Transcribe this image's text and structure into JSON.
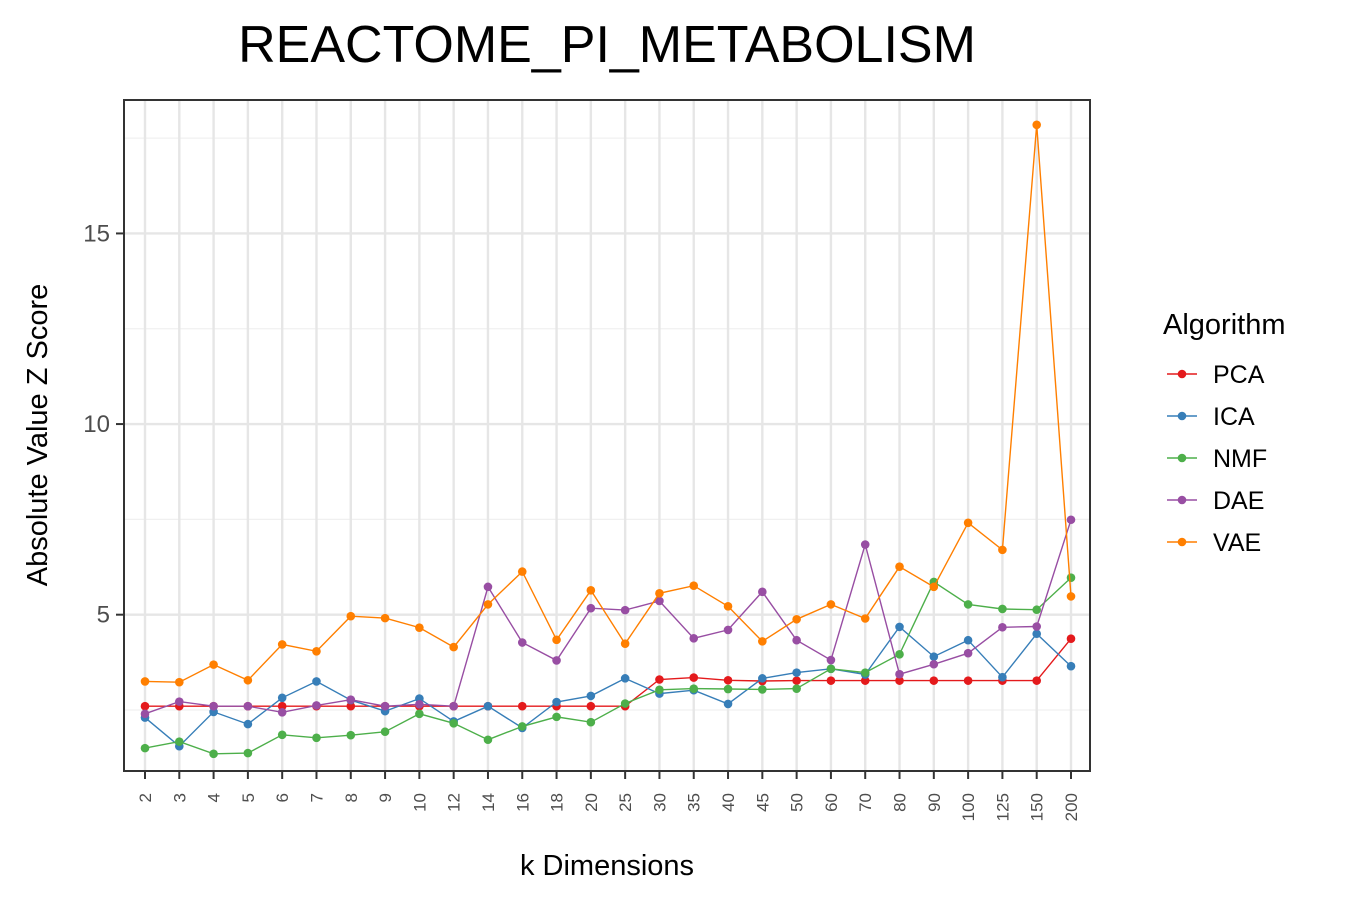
{
  "chart_data": {
    "type": "line",
    "title": "REACTOME_PI_METABOLISM",
    "xlabel": "k Dimensions",
    "ylabel": "Absolute Value Z Score",
    "categories": [
      "2",
      "3",
      "4",
      "5",
      "6",
      "7",
      "8",
      "9",
      "10",
      "12",
      "14",
      "16",
      "18",
      "20",
      "25",
      "30",
      "35",
      "40",
      "45",
      "50",
      "60",
      "70",
      "80",
      "90",
      "100",
      "125",
      "150",
      "200"
    ],
    "yticks": [
      "5",
      "10",
      "15"
    ],
    "ylim": [
      0.9,
      18.5
    ],
    "grid": true,
    "legend": {
      "title": "Algorithm",
      "position": "right"
    },
    "series": [
      {
        "name": "PCA",
        "color": "#E41A1C",
        "values": [
          2.6,
          2.6,
          2.6,
          2.6,
          2.6,
          2.6,
          2.6,
          2.6,
          2.6,
          2.6,
          2.6,
          2.6,
          2.6,
          2.6,
          2.6,
          3.3,
          3.35,
          3.28,
          3.26,
          3.27,
          3.27,
          3.27,
          3.27,
          3.27,
          3.27,
          3.27,
          3.27,
          4.37
        ]
      },
      {
        "name": "ICA",
        "color": "#377EB8",
        "values": [
          2.3,
          1.55,
          2.45,
          2.13,
          2.82,
          3.25,
          2.76,
          2.47,
          2.8,
          2.2,
          2.6,
          2.03,
          2.71,
          2.87,
          3.33,
          2.93,
          3.02,
          2.66,
          3.33,
          3.48,
          3.58,
          3.43,
          4.68,
          3.9,
          4.33,
          3.36,
          4.5,
          3.65
        ]
      },
      {
        "name": "NMF",
        "color": "#4DAF4A",
        "values": [
          1.5,
          1.67,
          1.35,
          1.37,
          1.85,
          1.77,
          1.84,
          1.93,
          2.4,
          2.15,
          1.72,
          2.07,
          2.32,
          2.18,
          2.67,
          3.03,
          3.06,
          3.05,
          3.04,
          3.06,
          3.58,
          3.48,
          3.96,
          5.86,
          5.27,
          5.15,
          5.13,
          5.97
        ]
      },
      {
        "name": "DAE",
        "color": "#984EA3",
        "values": [
          2.4,
          2.72,
          2.6,
          2.6,
          2.44,
          2.62,
          2.77,
          2.6,
          2.65,
          2.6,
          5.73,
          4.27,
          3.8,
          5.17,
          5.12,
          5.36,
          4.38,
          4.6,
          5.6,
          4.33,
          3.81,
          6.84,
          3.44,
          3.7,
          3.99,
          4.67,
          4.69,
          7.49
        ]
      },
      {
        "name": "VAE",
        "color": "#FF7F00",
        "values": [
          3.25,
          3.23,
          3.69,
          3.28,
          4.22,
          4.04,
          4.96,
          4.91,
          4.66,
          4.15,
          5.27,
          6.13,
          4.34,
          5.64,
          4.24,
          5.56,
          5.76,
          5.22,
          4.3,
          4.88,
          5.27,
          4.9,
          6.26,
          5.73,
          7.41,
          6.7,
          17.85,
          5.48
        ]
      }
    ]
  }
}
